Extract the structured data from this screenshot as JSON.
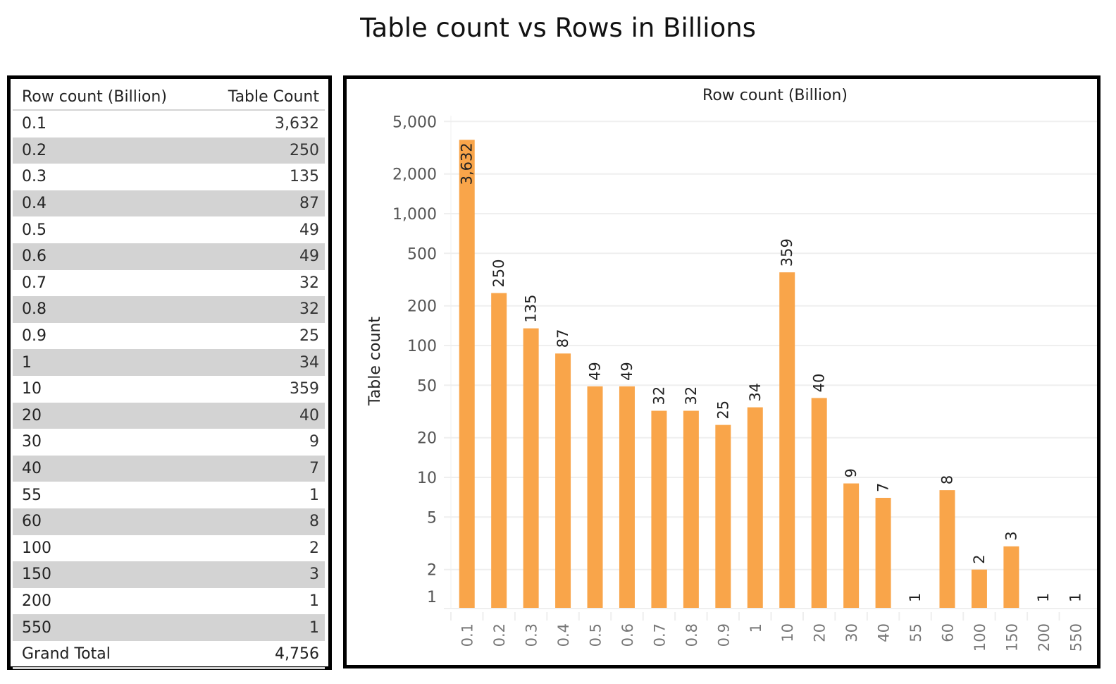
{
  "title": "Table count vs Rows in Billions",
  "table": {
    "headers": [
      "Row count (Billion)",
      "Table Count"
    ],
    "rows": [
      {
        "row_count": "0.1",
        "table_count": "3,632"
      },
      {
        "row_count": "0.2",
        "table_count": "250"
      },
      {
        "row_count": "0.3",
        "table_count": "135"
      },
      {
        "row_count": "0.4",
        "table_count": "87"
      },
      {
        "row_count": "0.5",
        "table_count": "49"
      },
      {
        "row_count": "0.6",
        "table_count": "49"
      },
      {
        "row_count": "0.7",
        "table_count": "32"
      },
      {
        "row_count": "0.8",
        "table_count": "32"
      },
      {
        "row_count": "0.9",
        "table_count": "25"
      },
      {
        "row_count": "1",
        "table_count": "34"
      },
      {
        "row_count": "10",
        "table_count": "359"
      },
      {
        "row_count": "20",
        "table_count": "40"
      },
      {
        "row_count": "30",
        "table_count": "9"
      },
      {
        "row_count": "40",
        "table_count": "7"
      },
      {
        "row_count": "55",
        "table_count": "1"
      },
      {
        "row_count": "60",
        "table_count": "8"
      },
      {
        "row_count": "100",
        "table_count": "2"
      },
      {
        "row_count": "150",
        "table_count": "3"
      },
      {
        "row_count": "200",
        "table_count": "1"
      },
      {
        "row_count": "550",
        "table_count": "1"
      }
    ],
    "total_label": "Grand Total",
    "total_value": "4,756"
  },
  "colors": {
    "bar": "#f9a54a",
    "grid": "#efefef",
    "alt_row": "#d3d3d3"
  },
  "chart_data": {
    "type": "bar",
    "title": "Row count (Billion)",
    "xlabel": "Row count (Billion)",
    "ylabel": "Table count",
    "yscale": "log",
    "ylim": [
      0.8,
      5000
    ],
    "yticks": [
      1,
      2,
      5,
      10,
      20,
      50,
      100,
      200,
      500,
      1000,
      2000,
      5000
    ],
    "ytick_labels": [
      "1",
      "2",
      "5",
      "10",
      "20",
      "50",
      "100",
      "200",
      "500",
      "1,000",
      "2,000",
      "5,000"
    ],
    "categories": [
      "0.1",
      "0.2",
      "0.3",
      "0.4",
      "0.5",
      "0.6",
      "0.7",
      "0.8",
      "0.9",
      "1",
      "10",
      "20",
      "30",
      "40",
      "55",
      "60",
      "100",
      "150",
      "200",
      "550"
    ],
    "values": [
      3632,
      250,
      135,
      87,
      49,
      49,
      32,
      32,
      25,
      34,
      359,
      40,
      9,
      7,
      1,
      8,
      2,
      3,
      1,
      1
    ],
    "data_labels": [
      "3,632",
      "250",
      "135",
      "87",
      "49",
      "49",
      "32",
      "32",
      "25",
      "34",
      "359",
      "40",
      "9",
      "7",
      "1",
      "8",
      "2",
      "3",
      "1",
      "1"
    ],
    "grid": true,
    "legend": "none"
  }
}
